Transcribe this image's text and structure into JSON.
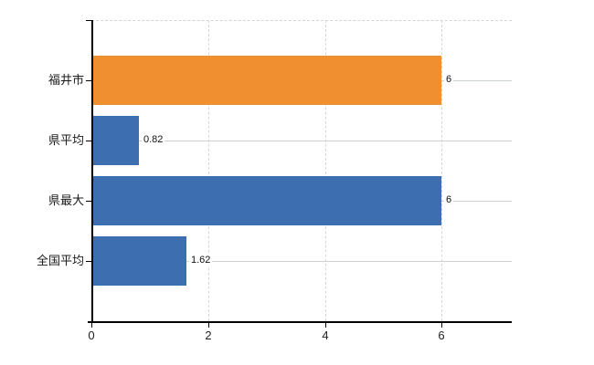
{
  "chart_data": {
    "type": "bar",
    "orientation": "horizontal",
    "title": "",
    "xlabel": "",
    "ylabel": "",
    "categories": [
      "福井市",
      "県平均",
      "県最大",
      "全国平均"
    ],
    "values": [
      6,
      0.82,
      6,
      1.62
    ],
    "value_labels": [
      "6",
      "0.82",
      "6",
      "1.62"
    ],
    "bar_colors": [
      "#ef8f30",
      "#3d6eb0",
      "#3d6eb0",
      "#3d6eb0"
    ],
    "x_tick_labels": [
      "0",
      "2",
      "4",
      "6"
    ],
    "x_tick_values": [
      0,
      2,
      4,
      6
    ],
    "xlim": [
      0,
      7.2
    ],
    "legend": "none",
    "grid": {
      "vertical": "dashed light gray at x ticks",
      "horizontal": "solid light gray at category centers",
      "top_boundary": "dashed light gray"
    },
    "colors": {
      "background": "#ffffff",
      "axis": "#000000",
      "grid_vertical": "#d6d6d6",
      "grid_horizontal": "#ccd2cc",
      "category_text": "#1a1a1a",
      "value_text": "#111111",
      "tick_text": "#222222"
    }
  }
}
